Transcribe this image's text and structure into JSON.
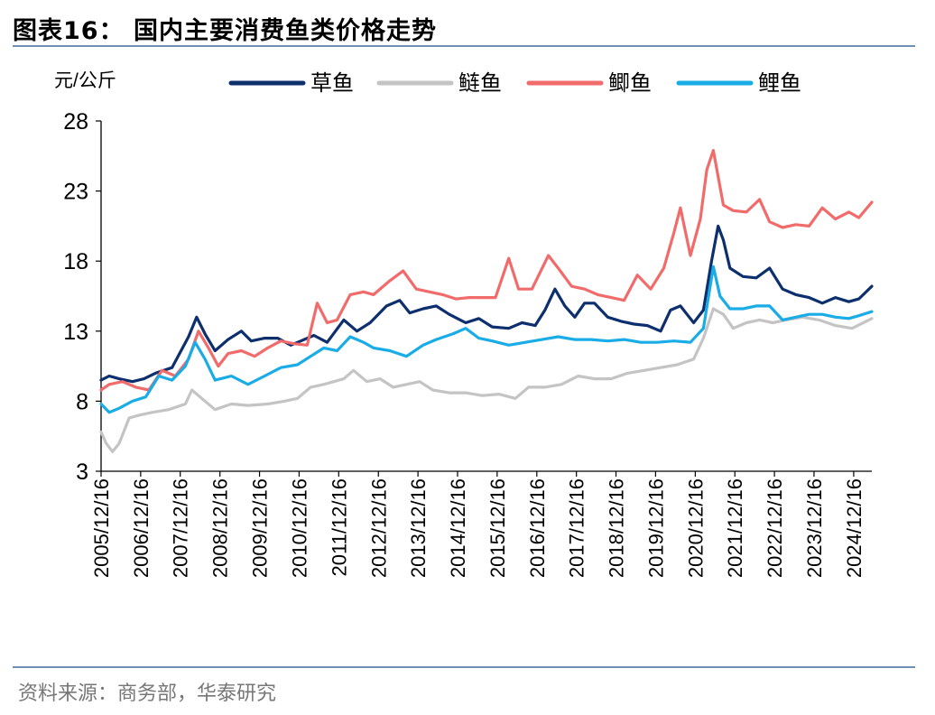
{
  "figure_title": "图表16：  国内主要消费鱼类价格走势",
  "source_note": "资料来源：商务部，华泰研究",
  "chart_data": {
    "type": "line",
    "ylabel": "元/公斤",
    "ylim": [
      3,
      28
    ],
    "yticks": [
      "3",
      "8",
      "13",
      "18",
      "23",
      "28"
    ],
    "xlim": [
      "2005-12-16",
      "2025-06-01"
    ],
    "xtick_labels": [
      "2005/12/16",
      "2006/12/16",
      "2007/12/16",
      "2008/12/16",
      "2009/12/16",
      "2010/12/16",
      "2011/12/16",
      "2012/12/16",
      "2013/12/16",
      "2014/12/16",
      "2015/12/16",
      "2016/12/16",
      "2017/12/16",
      "2018/12/16",
      "2019/12/16",
      "2020/12/16",
      "2021/12/16",
      "2022/12/16",
      "2023/12/16",
      "2024/12/16"
    ],
    "legend_position": "top",
    "series": [
      {
        "name": "草鱼",
        "color": "#0d2f6e",
        "points": [
          [
            "2005-12-16",
            9.5
          ],
          [
            "2006-03-01",
            9.8
          ],
          [
            "2006-06-01",
            9.6
          ],
          [
            "2006-10-01",
            9.4
          ],
          [
            "2007-01-15",
            9.6
          ],
          [
            "2007-05-01",
            10.0
          ],
          [
            "2007-10-01",
            10.4
          ],
          [
            "2008-03-01",
            12.6
          ],
          [
            "2008-05-15",
            14.0
          ],
          [
            "2008-08-01",
            12.8
          ],
          [
            "2008-11-01",
            11.6
          ],
          [
            "2009-03-01",
            12.4
          ],
          [
            "2009-07-01",
            13.0
          ],
          [
            "2009-10-01",
            12.3
          ],
          [
            "2010-02-01",
            12.5
          ],
          [
            "2010-06-01",
            12.5
          ],
          [
            "2010-10-01",
            12.0
          ],
          [
            "2011-01-01",
            12.3
          ],
          [
            "2011-05-01",
            12.7
          ],
          [
            "2011-09-01",
            12.2
          ],
          [
            "2012-02-01",
            13.8
          ],
          [
            "2012-06-01",
            13.0
          ],
          [
            "2012-10-01",
            13.6
          ],
          [
            "2013-03-01",
            14.8
          ],
          [
            "2013-07-01",
            15.2
          ],
          [
            "2013-10-01",
            14.3
          ],
          [
            "2014-02-01",
            14.6
          ],
          [
            "2014-06-01",
            14.8
          ],
          [
            "2014-10-01",
            14.2
          ],
          [
            "2015-03-01",
            13.6
          ],
          [
            "2015-07-01",
            13.9
          ],
          [
            "2015-11-01",
            13.3
          ],
          [
            "2016-04-01",
            13.2
          ],
          [
            "2016-08-01",
            13.6
          ],
          [
            "2016-12-01",
            13.4
          ],
          [
            "2017-03-01",
            14.5
          ],
          [
            "2017-06-01",
            16.0
          ],
          [
            "2017-09-01",
            14.8
          ],
          [
            "2017-12-01",
            14.0
          ],
          [
            "2018-03-01",
            15.0
          ],
          [
            "2018-06-01",
            15.0
          ],
          [
            "2018-10-01",
            14.0
          ],
          [
            "2019-02-01",
            13.7
          ],
          [
            "2019-06-01",
            13.5
          ],
          [
            "2019-10-01",
            13.4
          ],
          [
            "2020-02-01",
            13.0
          ],
          [
            "2020-05-01",
            14.5
          ],
          [
            "2020-08-01",
            14.8
          ],
          [
            "2020-12-01",
            13.6
          ],
          [
            "2021-03-01",
            14.5
          ],
          [
            "2021-05-15",
            18.0
          ],
          [
            "2021-07-15",
            20.5
          ],
          [
            "2021-09-01",
            19.5
          ],
          [
            "2021-11-01",
            17.5
          ],
          [
            "2022-03-01",
            16.9
          ],
          [
            "2022-07-01",
            16.8
          ],
          [
            "2022-11-01",
            17.5
          ],
          [
            "2023-03-01",
            16.0
          ],
          [
            "2023-07-01",
            15.6
          ],
          [
            "2023-11-01",
            15.4
          ],
          [
            "2024-03-01",
            15.0
          ],
          [
            "2024-07-01",
            15.4
          ],
          [
            "2024-11-01",
            15.1
          ],
          [
            "2025-02-01",
            15.3
          ],
          [
            "2025-06-01",
            16.2
          ]
        ]
      },
      {
        "name": "鲢鱼",
        "color": "#c4c4c4",
        "points": [
          [
            "2005-12-16",
            5.8
          ],
          [
            "2006-02-01",
            5.0
          ],
          [
            "2006-04-01",
            4.4
          ],
          [
            "2006-06-01",
            5.0
          ],
          [
            "2006-09-01",
            6.8
          ],
          [
            "2006-12-01",
            7.0
          ],
          [
            "2007-04-01",
            7.2
          ],
          [
            "2007-09-01",
            7.4
          ],
          [
            "2008-02-01",
            7.8
          ],
          [
            "2008-04-01",
            8.8
          ],
          [
            "2008-07-01",
            8.2
          ],
          [
            "2008-11-01",
            7.4
          ],
          [
            "2009-04-01",
            7.8
          ],
          [
            "2009-09-01",
            7.7
          ],
          [
            "2010-03-01",
            7.8
          ],
          [
            "2010-08-01",
            8.0
          ],
          [
            "2010-12-01",
            8.2
          ],
          [
            "2011-04-01",
            9.0
          ],
          [
            "2011-08-01",
            9.2
          ],
          [
            "2012-02-01",
            9.6
          ],
          [
            "2012-05-01",
            10.2
          ],
          [
            "2012-09-01",
            9.4
          ],
          [
            "2013-01-01",
            9.6
          ],
          [
            "2013-05-01",
            9.0
          ],
          [
            "2013-09-01",
            9.2
          ],
          [
            "2014-01-01",
            9.4
          ],
          [
            "2014-05-01",
            8.8
          ],
          [
            "2014-10-01",
            8.6
          ],
          [
            "2015-03-01",
            8.6
          ],
          [
            "2015-08-01",
            8.4
          ],
          [
            "2016-01-01",
            8.5
          ],
          [
            "2016-06-01",
            8.2
          ],
          [
            "2016-10-01",
            9.0
          ],
          [
            "2017-03-01",
            9.0
          ],
          [
            "2017-08-01",
            9.2
          ],
          [
            "2018-01-01",
            9.8
          ],
          [
            "2018-06-01",
            9.6
          ],
          [
            "2018-11-01",
            9.6
          ],
          [
            "2019-04-01",
            10.0
          ],
          [
            "2019-09-01",
            10.2
          ],
          [
            "2020-02-01",
            10.4
          ],
          [
            "2020-07-01",
            10.6
          ],
          [
            "2020-12-01",
            11.0
          ],
          [
            "2021-03-01",
            12.5
          ],
          [
            "2021-06-01",
            14.6
          ],
          [
            "2021-09-01",
            14.2
          ],
          [
            "2021-12-01",
            13.2
          ],
          [
            "2022-04-01",
            13.6
          ],
          [
            "2022-08-01",
            13.8
          ],
          [
            "2022-12-01",
            13.6
          ],
          [
            "2023-04-01",
            13.8
          ],
          [
            "2023-09-01",
            14.0
          ],
          [
            "2024-02-01",
            13.8
          ],
          [
            "2024-07-01",
            13.4
          ],
          [
            "2024-12-01",
            13.2
          ],
          [
            "2025-06-01",
            13.9
          ]
        ]
      },
      {
        "name": "鲫鱼",
        "color": "#f26b6b",
        "points": [
          [
            "2005-12-16",
            8.8
          ],
          [
            "2006-03-01",
            9.2
          ],
          [
            "2006-07-01",
            9.4
          ],
          [
            "2006-11-01",
            9.0
          ],
          [
            "2007-03-01",
            8.8
          ],
          [
            "2007-07-01",
            10.2
          ],
          [
            "2007-11-01",
            9.8
          ],
          [
            "2008-03-01",
            11.0
          ],
          [
            "2008-06-01",
            13.0
          ],
          [
            "2008-09-01",
            11.8
          ],
          [
            "2008-12-01",
            10.5
          ],
          [
            "2009-03-01",
            11.4
          ],
          [
            "2009-07-01",
            11.6
          ],
          [
            "2009-11-01",
            11.2
          ],
          [
            "2010-03-01",
            11.8
          ],
          [
            "2010-07-01",
            12.3
          ],
          [
            "2010-11-01",
            12.1
          ],
          [
            "2011-03-01",
            12.0
          ],
          [
            "2011-06-01",
            15.0
          ],
          [
            "2011-09-01",
            13.6
          ],
          [
            "2011-12-01",
            13.8
          ],
          [
            "2012-04-01",
            15.6
          ],
          [
            "2012-08-01",
            15.8
          ],
          [
            "2012-11-01",
            15.6
          ],
          [
            "2013-04-01",
            16.6
          ],
          [
            "2013-08-01",
            17.3
          ],
          [
            "2013-12-01",
            16.0
          ],
          [
            "2014-04-01",
            15.8
          ],
          [
            "2014-08-01",
            15.6
          ],
          [
            "2014-12-01",
            15.3
          ],
          [
            "2015-04-01",
            15.4
          ],
          [
            "2015-08-01",
            15.4
          ],
          [
            "2015-12-01",
            15.4
          ],
          [
            "2016-04-01",
            18.2
          ],
          [
            "2016-07-01",
            16.0
          ],
          [
            "2016-11-01",
            16.0
          ],
          [
            "2017-04-01",
            18.4
          ],
          [
            "2017-07-01",
            17.5
          ],
          [
            "2017-11-01",
            16.2
          ],
          [
            "2018-03-01",
            16.0
          ],
          [
            "2018-07-01",
            15.6
          ],
          [
            "2018-11-01",
            15.4
          ],
          [
            "2019-03-01",
            15.2
          ],
          [
            "2019-07-01",
            17.0
          ],
          [
            "2019-11-01",
            16.0
          ],
          [
            "2020-03-01",
            17.5
          ],
          [
            "2020-06-01",
            20.0
          ],
          [
            "2020-08-01",
            21.8
          ],
          [
            "2020-11-01",
            18.4
          ],
          [
            "2021-02-01",
            21.0
          ],
          [
            "2021-04-01",
            24.5
          ],
          [
            "2021-06-01",
            25.9
          ],
          [
            "2021-09-01",
            22.0
          ],
          [
            "2021-12-01",
            21.6
          ],
          [
            "2022-04-01",
            21.5
          ],
          [
            "2022-08-01",
            22.4
          ],
          [
            "2022-11-01",
            20.8
          ],
          [
            "2023-03-01",
            20.4
          ],
          [
            "2023-07-01",
            20.6
          ],
          [
            "2023-11-01",
            20.5
          ],
          [
            "2024-03-01",
            21.8
          ],
          [
            "2024-07-01",
            21.0
          ],
          [
            "2024-11-01",
            21.5
          ],
          [
            "2025-02-01",
            21.1
          ],
          [
            "2025-06-01",
            22.2
          ]
        ]
      },
      {
        "name": "鲤鱼",
        "color": "#1aace6",
        "points": [
          [
            "2005-12-16",
            7.8
          ],
          [
            "2006-03-01",
            7.2
          ],
          [
            "2006-06-01",
            7.5
          ],
          [
            "2006-10-01",
            8.0
          ],
          [
            "2007-02-01",
            8.3
          ],
          [
            "2007-06-01",
            9.8
          ],
          [
            "2007-10-01",
            9.5
          ],
          [
            "2008-02-01",
            10.5
          ],
          [
            "2008-05-01",
            12.2
          ],
          [
            "2008-08-01",
            11.0
          ],
          [
            "2008-11-01",
            9.5
          ],
          [
            "2009-04-01",
            9.8
          ],
          [
            "2009-09-01",
            9.2
          ],
          [
            "2010-02-01",
            9.8
          ],
          [
            "2010-07-01",
            10.4
          ],
          [
            "2010-12-01",
            10.6
          ],
          [
            "2011-04-01",
            11.2
          ],
          [
            "2011-08-01",
            11.8
          ],
          [
            "2011-12-01",
            11.6
          ],
          [
            "2012-04-01",
            12.6
          ],
          [
            "2012-08-01",
            12.2
          ],
          [
            "2012-11-01",
            11.8
          ],
          [
            "2013-04-01",
            11.6
          ],
          [
            "2013-09-01",
            11.2
          ],
          [
            "2014-02-01",
            12.0
          ],
          [
            "2014-06-01",
            12.4
          ],
          [
            "2014-11-01",
            12.8
          ],
          [
            "2015-03-01",
            13.2
          ],
          [
            "2015-07-01",
            12.5
          ],
          [
            "2015-11-01",
            12.3
          ],
          [
            "2016-04-01",
            12.0
          ],
          [
            "2016-09-01",
            12.2
          ],
          [
            "2017-02-01",
            12.4
          ],
          [
            "2017-07-01",
            12.6
          ],
          [
            "2017-12-01",
            12.4
          ],
          [
            "2018-05-01",
            12.4
          ],
          [
            "2018-10-01",
            12.3
          ],
          [
            "2019-03-01",
            12.4
          ],
          [
            "2019-08-01",
            12.2
          ],
          [
            "2020-01-01",
            12.2
          ],
          [
            "2020-06-01",
            12.3
          ],
          [
            "2020-11-01",
            12.2
          ],
          [
            "2021-03-01",
            13.2
          ],
          [
            "2021-06-01",
            17.6
          ],
          [
            "2021-08-01",
            15.5
          ],
          [
            "2021-11-01",
            14.6
          ],
          [
            "2022-03-01",
            14.6
          ],
          [
            "2022-07-01",
            14.8
          ],
          [
            "2022-11-01",
            14.8
          ],
          [
            "2023-03-01",
            13.8
          ],
          [
            "2023-07-01",
            14.0
          ],
          [
            "2023-11-01",
            14.2
          ],
          [
            "2024-03-01",
            14.2
          ],
          [
            "2024-07-01",
            14.0
          ],
          [
            "2024-11-01",
            13.9
          ],
          [
            "2025-02-01",
            14.1
          ],
          [
            "2025-06-01",
            14.4
          ]
        ]
      }
    ]
  }
}
